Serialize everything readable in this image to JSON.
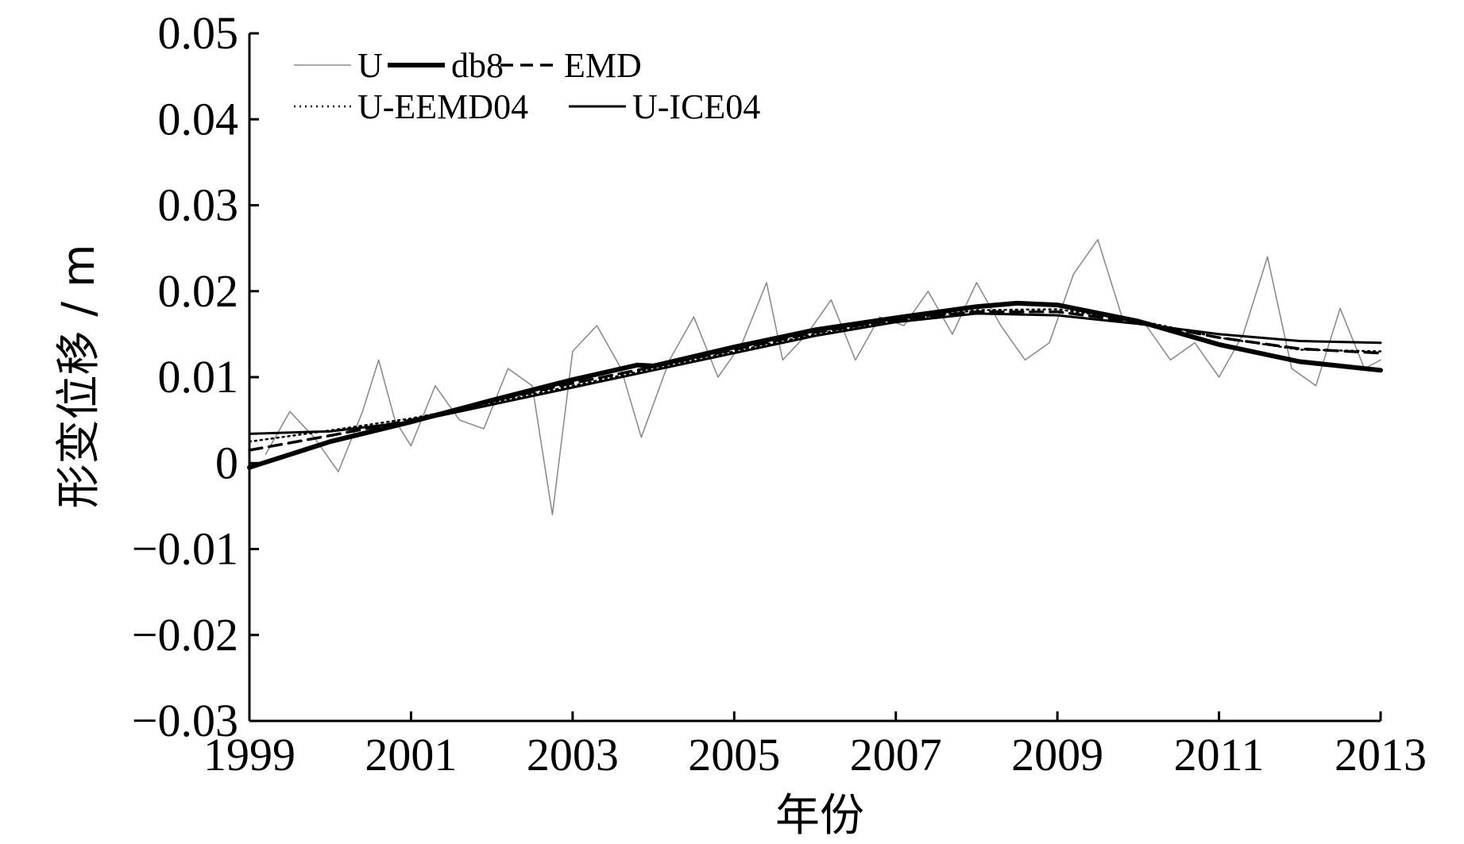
{
  "chart_data": {
    "type": "line",
    "title": "",
    "xlabel": "年份",
    "ylabel": "形变位移 / m",
    "xlim": [
      1999,
      2013
    ],
    "ylim": [
      -0.03,
      0.05
    ],
    "x_ticks": [
      1999,
      2001,
      2003,
      2005,
      2007,
      2009,
      2011,
      2013
    ],
    "x_tick_labels": [
      "1999",
      "2001",
      "2003",
      "2005",
      "2007",
      "2009",
      "2011",
      "2013"
    ],
    "y_ticks": [
      -0.03,
      -0.02,
      -0.01,
      0,
      0.01,
      0.02,
      0.03,
      0.04,
      0.05
    ],
    "y_tick_labels": [
      "−0.03",
      "−0.02",
      "−0.01",
      "0",
      "0.01",
      "0.02",
      "0.03",
      "0.04",
      "0.05"
    ],
    "grid": false,
    "legend": {
      "placement": "top-left",
      "rows": [
        [
          "U",
          "db8",
          "EMD"
        ],
        [
          "U-EEMD04",
          "U-ICE04"
        ]
      ]
    },
    "series": [
      {
        "name": "U",
        "style": "raw",
        "color": "#8c8c8c",
        "x": [
          1999.2,
          1999.5,
          1999.8,
          2000.1,
          2000.4,
          2000.6,
          2000.8,
          2001.0,
          2001.3,
          2001.6,
          2001.9,
          2002.2,
          2002.5,
          2002.75,
          2003.0,
          2003.3,
          2003.6,
          2003.85,
          2004.2,
          2004.5,
          2004.8,
          2005.1,
          2005.4,
          2005.6,
          2005.9,
          2006.2,
          2006.5,
          2006.8,
          2007.1,
          2007.4,
          2007.7,
          2008.0,
          2008.3,
          2008.6,
          2008.9,
          2009.2,
          2009.5,
          2009.8,
          2010.1,
          2010.4,
          2010.7,
          2011.0,
          2011.3,
          2011.6,
          2011.9,
          2012.2,
          2012.5,
          2012.8,
          2013.0
        ],
        "y": [
          0.001,
          0.006,
          0.003,
          -0.001,
          0.006,
          0.012,
          0.005,
          0.002,
          0.009,
          0.005,
          0.004,
          0.011,
          0.009,
          -0.006,
          0.013,
          0.016,
          0.011,
          0.003,
          0.012,
          0.017,
          0.01,
          0.014,
          0.021,
          0.012,
          0.015,
          0.019,
          0.012,
          0.017,
          0.016,
          0.02,
          0.015,
          0.021,
          0.016,
          0.012,
          0.014,
          0.022,
          0.026,
          0.017,
          0.016,
          0.012,
          0.014,
          0.01,
          0.015,
          0.024,
          0.011,
          0.009,
          0.018,
          0.011,
          0.012
        ]
      },
      {
        "name": "db8",
        "style": "thick-solid",
        "color": "#000000",
        "x": [
          1999.0,
          2000.0,
          2001.0,
          2002.0,
          2003.0,
          2003.8,
          2004.0,
          2005.0,
          2006.0,
          2007.0,
          2008.0,
          2008.5,
          2009.0,
          2010.0,
          2011.0,
          2012.0,
          2013.0
        ],
        "y": [
          -0.0005,
          0.0025,
          0.0048,
          0.0073,
          0.0097,
          0.0114,
          0.0113,
          0.0135,
          0.0155,
          0.0169,
          0.0182,
          0.0186,
          0.0184,
          0.0165,
          0.0138,
          0.0118,
          0.0108
        ]
      },
      {
        "name": "EMD",
        "style": "dashed",
        "color": "#000000",
        "x": [
          1999.0,
          2000.0,
          2001.0,
          2002.0,
          2003.0,
          2004.0,
          2005.0,
          2006.0,
          2007.0,
          2008.0,
          2009.0,
          2010.0,
          2011.0,
          2012.0,
          2013.0
        ],
        "y": [
          0.0015,
          0.0032,
          0.005,
          0.0072,
          0.0093,
          0.0112,
          0.0132,
          0.0152,
          0.0167,
          0.0176,
          0.0176,
          0.0164,
          0.0146,
          0.0133,
          0.0128
        ]
      },
      {
        "name": "U-EEMD04",
        "style": "dotted",
        "color": "#000000",
        "x": [
          1999.0,
          2000.0,
          2001.0,
          2002.0,
          2003.0,
          2004.0,
          2005.0,
          2006.0,
          2007.0,
          2008.0,
          2009.0,
          2010.0,
          2011.0,
          2012.0,
          2013.0
        ],
        "y": [
          0.0025,
          0.0038,
          0.0052,
          0.007,
          0.009,
          0.011,
          0.013,
          0.015,
          0.0166,
          0.0178,
          0.0179,
          0.0166,
          0.0146,
          0.0132,
          0.013
        ]
      },
      {
        "name": "U-ICE04",
        "style": "thin-solid",
        "color": "#000000",
        "x": [
          1999.0,
          2000.0,
          2001.0,
          2002.0,
          2003.0,
          2004.0,
          2005.0,
          2006.0,
          2007.0,
          2008.0,
          2009.0,
          2010.0,
          2011.0,
          2012.0,
          2013.0
        ],
        "y": [
          0.0034,
          0.0037,
          0.0048,
          0.0068,
          0.0088,
          0.0108,
          0.0128,
          0.0148,
          0.0164,
          0.0174,
          0.0172,
          0.0162,
          0.015,
          0.0142,
          0.014
        ]
      }
    ]
  }
}
